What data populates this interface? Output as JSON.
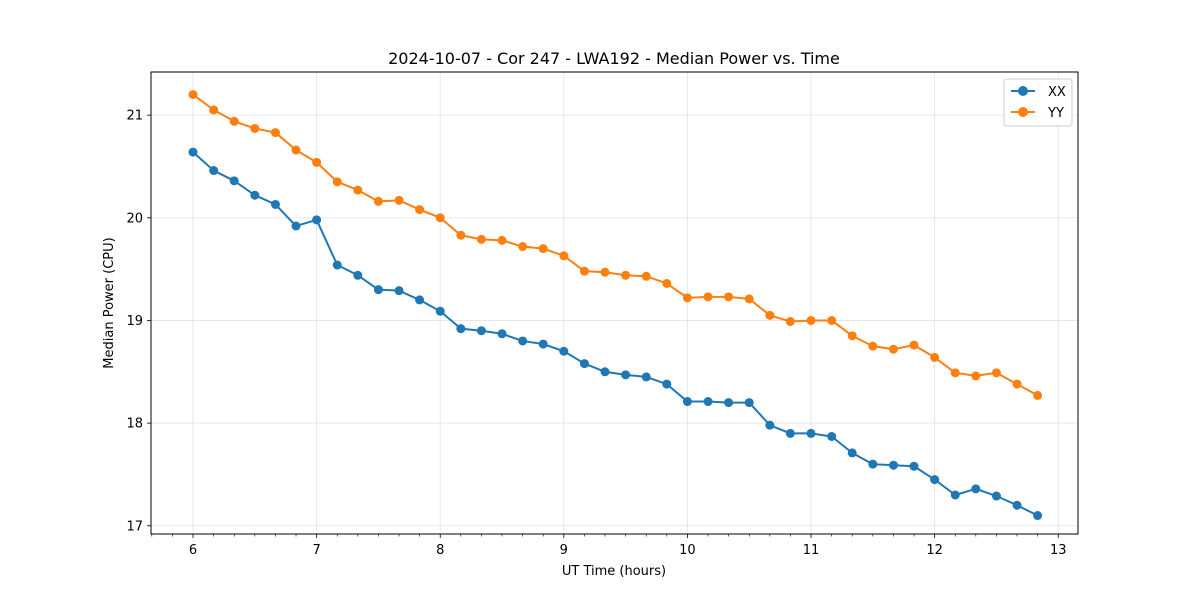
{
  "chart_data": {
    "type": "line",
    "title": "2024-10-07 - Cor 247 - LWA192 - Median Power vs. Time",
    "xlabel": "UT Time (hours)",
    "ylabel": "Median Power (CPU)",
    "xlim": [
      5.66,
      13.16
    ],
    "ylim": [
      16.92,
      21.42
    ],
    "xticks": [
      6,
      7,
      8,
      9,
      10,
      11,
      12,
      13
    ],
    "xtick_labels": [
      "6",
      "7",
      "8",
      "9",
      "10",
      "11",
      "12",
      "13"
    ],
    "yticks": [
      17,
      18,
      19,
      20,
      21
    ],
    "ytick_labels": [
      "17",
      "18",
      "19",
      "20",
      "21"
    ],
    "grid": true,
    "legend_position": "top-right",
    "x": [
      6.0,
      6.167,
      6.333,
      6.5,
      6.667,
      6.833,
      7.0,
      7.167,
      7.333,
      7.5,
      7.667,
      7.833,
      8.0,
      8.167,
      8.333,
      8.5,
      8.667,
      8.833,
      9.0,
      9.167,
      9.333,
      9.5,
      9.667,
      9.833,
      10.0,
      10.167,
      10.333,
      10.5,
      10.667,
      10.833,
      11.0,
      11.167,
      11.333,
      11.5,
      11.667,
      11.833,
      12.0,
      12.167,
      12.333,
      12.5,
      12.667,
      12.833
    ],
    "series": [
      {
        "name": "XX",
        "color": "#1f77b4",
        "values": [
          20.64,
          20.46,
          20.36,
          20.22,
          20.13,
          19.92,
          19.98,
          19.54,
          19.44,
          19.3,
          19.29,
          19.2,
          19.09,
          18.92,
          18.9,
          18.87,
          18.8,
          18.77,
          18.7,
          18.58,
          18.5,
          18.47,
          18.45,
          18.38,
          18.21,
          18.21,
          18.2,
          18.2,
          17.98,
          17.9,
          17.9,
          17.87,
          17.71,
          17.6,
          17.59,
          17.58,
          17.45,
          17.3,
          17.36,
          17.29,
          17.2,
          17.1
        ]
      },
      {
        "name": "YY",
        "color": "#ff7f0e",
        "values": [
          21.2,
          21.05,
          20.94,
          20.87,
          20.83,
          20.66,
          20.54,
          20.35,
          20.27,
          20.16,
          20.17,
          20.08,
          20.0,
          19.83,
          19.79,
          19.78,
          19.72,
          19.7,
          19.63,
          19.48,
          19.47,
          19.44,
          19.43,
          19.36,
          19.22,
          19.23,
          19.23,
          19.21,
          19.05,
          18.99,
          19.0,
          19.0,
          18.85,
          18.75,
          18.72,
          18.76,
          18.64,
          18.49,
          18.46,
          18.49,
          18.38,
          18.27
        ]
      }
    ]
  }
}
